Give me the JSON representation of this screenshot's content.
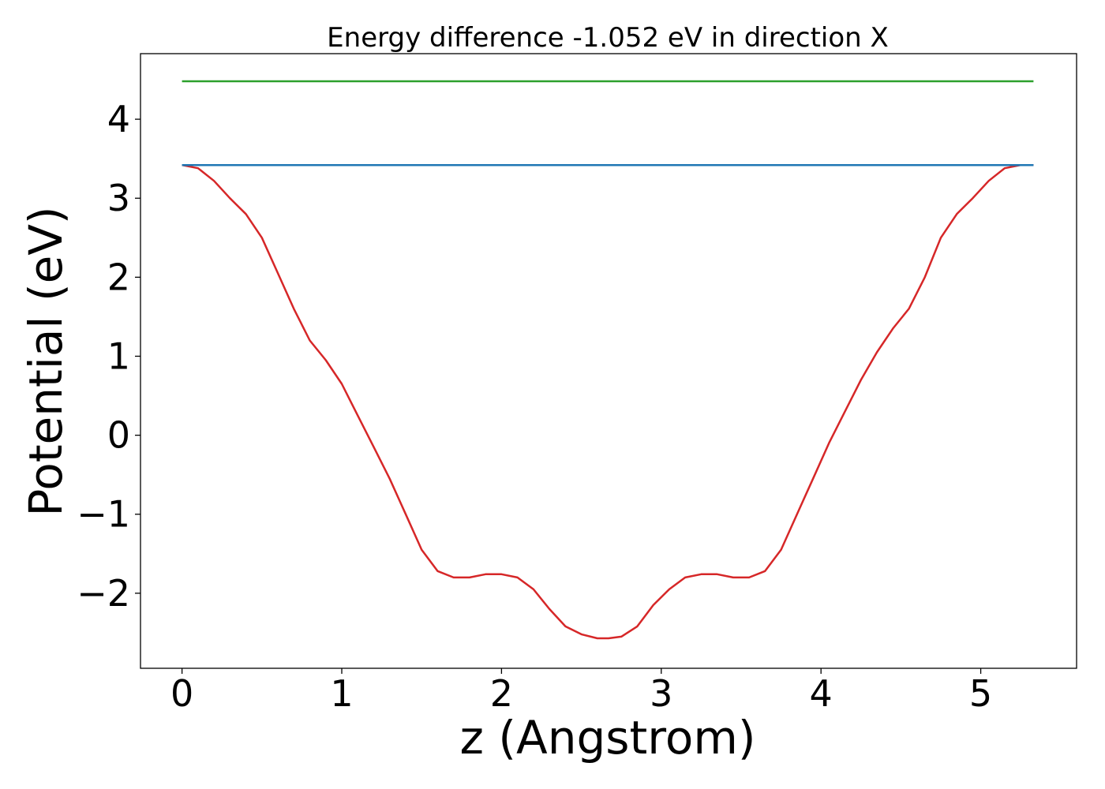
{
  "chart_data": {
    "type": "line",
    "title": "Energy difference -1.052 eV in direction X",
    "xlabel": "z (Angstrom)",
    "ylabel": "Potential (eV)",
    "xlim": [
      -0.26,
      5.6
    ],
    "ylim": [
      -2.95,
      4.83
    ],
    "xticks": [
      0,
      1,
      2,
      3,
      4,
      5
    ],
    "xtick_labels": [
      "0",
      "1",
      "2",
      "3",
      "4",
      "5"
    ],
    "yticks": [
      -2,
      -1,
      0,
      1,
      2,
      3,
      4
    ],
    "ytick_labels": [
      "−2",
      "−1",
      "0",
      "1",
      "2",
      "3",
      "4"
    ],
    "grid": false,
    "series": [
      {
        "color": "#d62728",
        "x": [
          0,
          0.1,
          0.2,
          0.3,
          0.4,
          0.5,
          0.6,
          0.7,
          0.8,
          0.9,
          1.0,
          1.1,
          1.2,
          1.3,
          1.4,
          1.5,
          1.6,
          1.7,
          1.8,
          1.9,
          2.0,
          2.1,
          2.2,
          2.3,
          2.4,
          2.5,
          2.6,
          2.67,
          2.75,
          2.85,
          2.95,
          3.05,
          3.15,
          3.25,
          3.35,
          3.45,
          3.55,
          3.65,
          3.75,
          3.85,
          3.95,
          4.05,
          4.15,
          4.25,
          4.35,
          4.45,
          4.55,
          4.65,
          4.75,
          4.85,
          4.95,
          5.05,
          5.15,
          5.25,
          5.33
        ],
        "y": [
          3.42,
          3.38,
          3.22,
          3.0,
          2.8,
          2.5,
          2.05,
          1.6,
          1.2,
          0.95,
          0.65,
          0.25,
          -0.15,
          -0.55,
          -1.0,
          -1.45,
          -1.72,
          -1.8,
          -1.8,
          -1.76,
          -1.76,
          -1.8,
          -1.95,
          -2.2,
          -2.42,
          -2.52,
          -2.57,
          -2.57,
          -2.55,
          -2.42,
          -2.15,
          -1.95,
          -1.8,
          -1.76,
          -1.76,
          -1.8,
          -1.8,
          -1.72,
          -1.45,
          -1.0,
          -0.55,
          -0.1,
          0.3,
          0.7,
          1.05,
          1.35,
          1.6,
          2.0,
          2.5,
          2.8,
          3.0,
          3.22,
          3.38,
          3.42,
          3.42
        ]
      },
      {
        "color": "#1f77b4",
        "x": [
          0,
          5.33
        ],
        "y": [
          3.42,
          3.42
        ]
      },
      {
        "color": "#2ca02c",
        "x": [
          0,
          5.33
        ],
        "y": [
          4.48,
          4.48
        ]
      }
    ]
  }
}
